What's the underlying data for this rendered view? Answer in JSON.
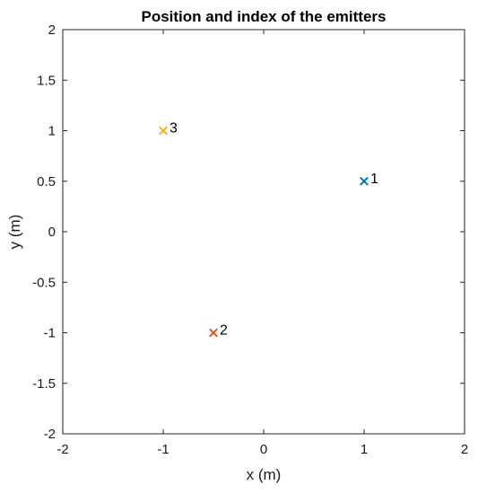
{
  "chart_data": {
    "type": "scatter",
    "title": "Position and index of the emitters",
    "xlabel": "x (m)",
    "ylabel": "y (m)",
    "xlim": [
      -2,
      2
    ],
    "ylim": [
      -2,
      2
    ],
    "xticks": [
      "-2",
      "-1",
      "0",
      "1",
      "2"
    ],
    "yticks": [
      "2",
      "1.5",
      "1",
      "0.5",
      "0",
      "-0.5",
      "-1",
      "-1.5",
      "-2"
    ],
    "grid": false,
    "marker": "x",
    "points": [
      {
        "label": "1",
        "x": 1,
        "y": 0.5,
        "color": "#0072BD"
      },
      {
        "label": "2",
        "x": -0.5,
        "y": -1,
        "color": "#D95319"
      },
      {
        "label": "3",
        "x": -1,
        "y": 1,
        "color": "#EDB120"
      }
    ]
  }
}
